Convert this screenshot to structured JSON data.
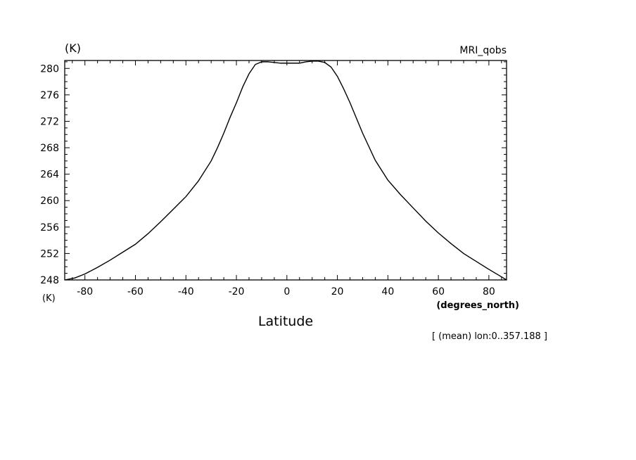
{
  "chart_data": {
    "type": "line",
    "title": "MRI_qobs",
    "y_unit_top": "(K)",
    "y_unit_bottom": "(K)",
    "x_unit": "(degrees_north)",
    "xlabel": "Latitude",
    "annotation": "[ (mean) lon:0..357.188 ]",
    "xlim": [
      -88,
      87
    ],
    "ylim": [
      248,
      281.2
    ],
    "x_ticks_major": [
      -80,
      -60,
      -40,
      -20,
      0,
      20,
      40,
      60,
      80
    ],
    "x_tick_labels": [
      "-80",
      "-60",
      "-40",
      "-20",
      "0",
      "20",
      "40",
      "60",
      "80"
    ],
    "y_ticks_major": [
      248,
      252,
      256,
      260,
      264,
      268,
      272,
      276,
      280
    ],
    "y_tick_labels": [
      "248",
      "252",
      "256",
      "260",
      "264",
      "268",
      "272",
      "276",
      "280"
    ],
    "grid": false,
    "series": [
      {
        "x": [
          -88,
          -84,
          -80,
          -75,
          -70,
          -65,
          -60,
          -55,
          -50,
          -45,
          -40,
          -35,
          -30,
          -27.5,
          -25,
          -22.5,
          -20,
          -17.5,
          -15,
          -12.5,
          -10,
          -7.5,
          -5,
          -2.5,
          0,
          2.5,
          5,
          7.5,
          10,
          12.5,
          15,
          17.5,
          20,
          22.5,
          25,
          27.5,
          30,
          35,
          40,
          45,
          50,
          55,
          60,
          65,
          70,
          75,
          80,
          84,
          87
        ],
        "y": [
          248.0,
          248.3,
          248.9,
          249.9,
          251.0,
          252.2,
          253.4,
          255.0,
          256.8,
          258.7,
          260.6,
          263.0,
          266.0,
          268.0,
          270.2,
          272.6,
          274.8,
          277.2,
          279.2,
          280.6,
          281.0,
          281.0,
          280.9,
          280.8,
          280.8,
          280.8,
          280.8,
          281.0,
          281.1,
          281.1,
          280.9,
          280.2,
          278.8,
          276.9,
          274.8,
          272.5,
          270.2,
          266.1,
          263.1,
          260.9,
          258.9,
          256.9,
          255.1,
          253.5,
          252.0,
          250.8,
          249.6,
          248.7,
          248.0
        ]
      }
    ]
  }
}
